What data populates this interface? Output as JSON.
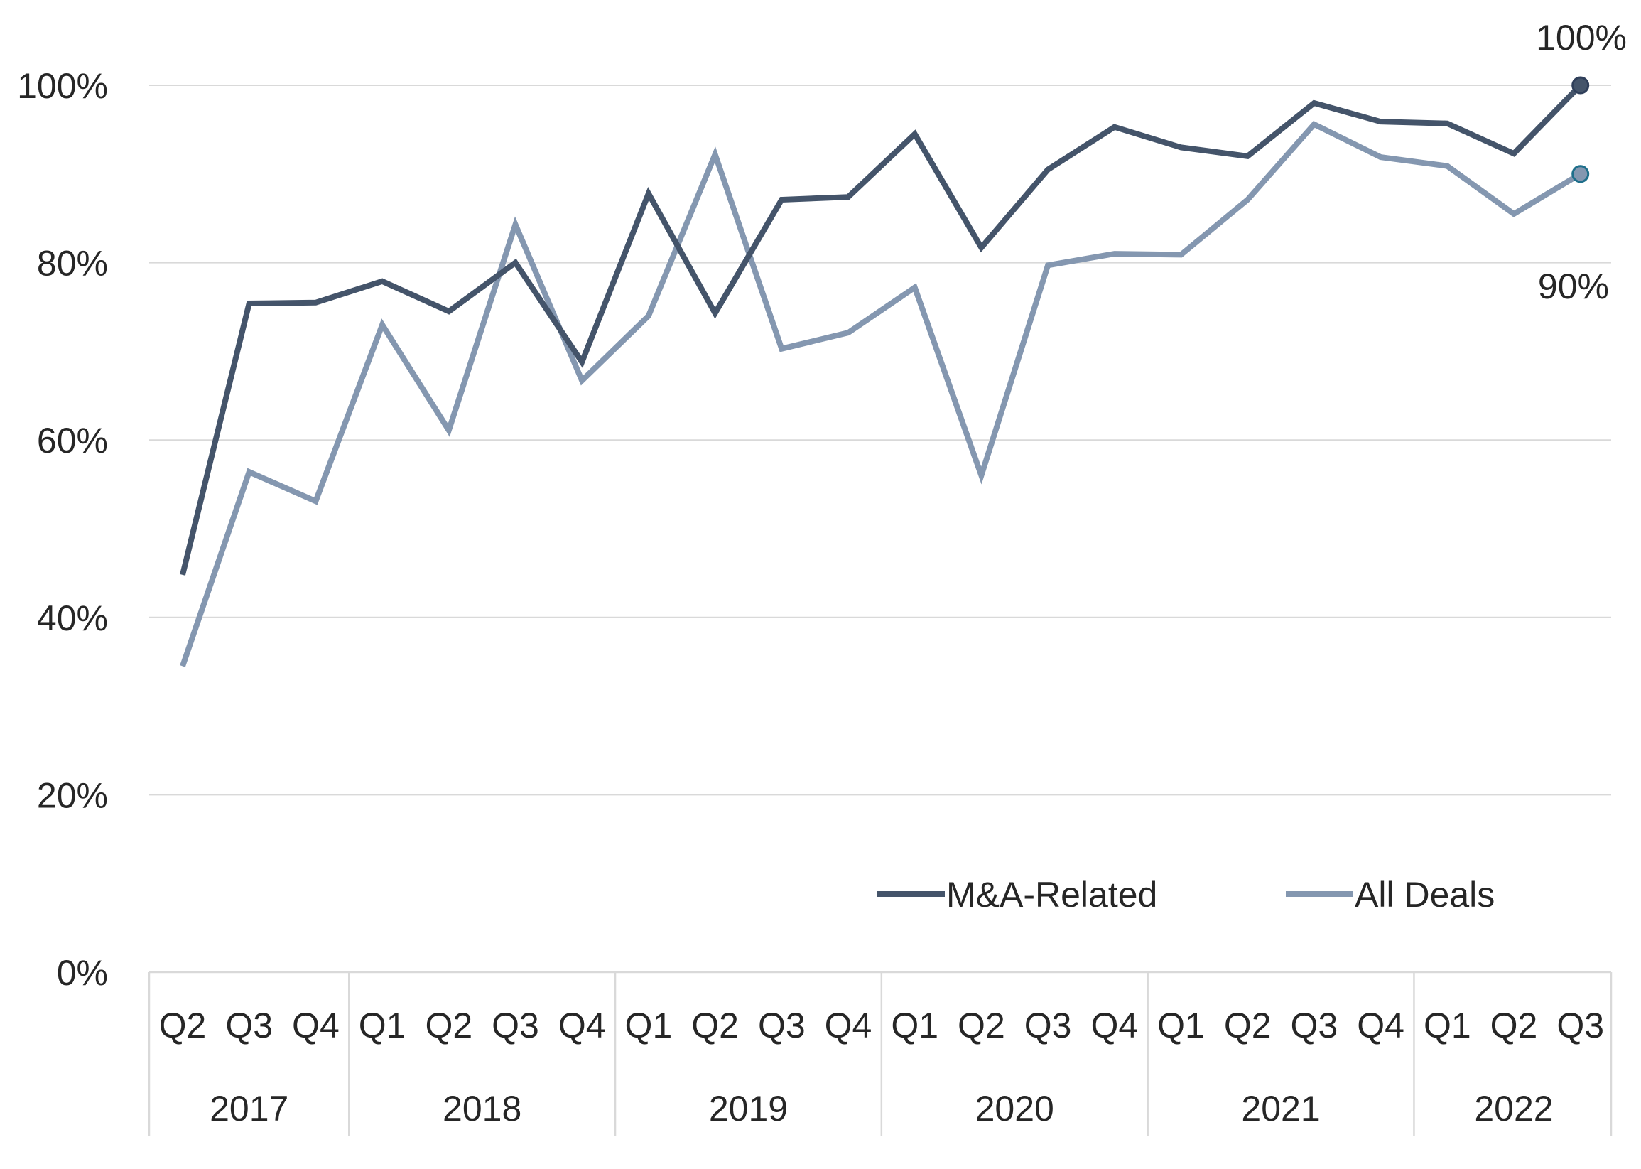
{
  "chart_data": {
    "type": "line",
    "title": "",
    "xlabel": "",
    "ylabel": "",
    "ylim": [
      0,
      100
    ],
    "yticks": [
      0,
      20,
      40,
      60,
      80,
      100
    ],
    "ytick_labels": [
      "0%",
      "20%",
      "40%",
      "60%",
      "80%",
      "100%"
    ],
    "grid": true,
    "legend_position": "bottom-right",
    "quarters": [
      "Q2",
      "Q3",
      "Q4",
      "Q1",
      "Q2",
      "Q3",
      "Q4",
      "Q1",
      "Q2",
      "Q3",
      "Q4",
      "Q1",
      "Q2",
      "Q3",
      "Q4",
      "Q1",
      "Q2",
      "Q3",
      "Q4",
      "Q1",
      "Q2",
      "Q3"
    ],
    "years": [
      {
        "label": "2017",
        "count": 3
      },
      {
        "label": "2018",
        "count": 4
      },
      {
        "label": "2019",
        "count": 4
      },
      {
        "label": "2020",
        "count": 4
      },
      {
        "label": "2021",
        "count": 4
      },
      {
        "label": "2022",
        "count": 3
      }
    ],
    "series": [
      {
        "name": "M&A-Related",
        "color": "#44546a",
        "values": [
          44.8,
          75.4,
          75.5,
          77.9,
          74.5,
          80.0,
          68.8,
          87.8,
          74.3,
          87.1,
          87.4,
          94.5,
          81.7,
          90.5,
          95.3,
          93.0,
          92.0,
          98.0,
          95.9,
          95.7,
          92.3,
          100.0
        ],
        "end_label": "100%"
      },
      {
        "name": "All Deals",
        "color": "#8497b0",
        "values": [
          34.5,
          56.4,
          53.1,
          73.0,
          61.1,
          84.3,
          66.7,
          74.0,
          92.2,
          70.3,
          72.1,
          77.2,
          56.0,
          79.7,
          81.0,
          80.9,
          87.1,
          95.6,
          91.9,
          90.9,
          85.5,
          90.0
        ],
        "end_label": "90%"
      }
    ]
  }
}
